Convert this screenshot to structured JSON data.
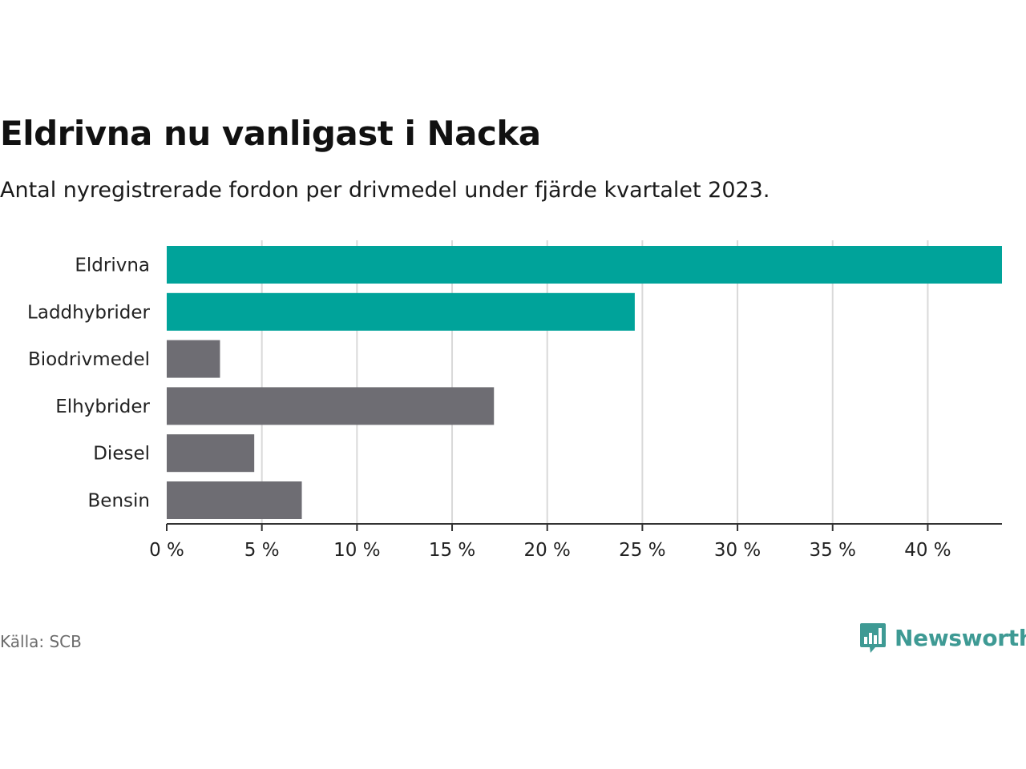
{
  "title": "Eldrivna nu vanligast i Nacka",
  "subtitle": "Antal nyregistrerade fordon per drivmedel under fjärde kvartalet 2023.",
  "source": "Källa: SCB",
  "brand": {
    "name": "Newsworthy",
    "icon": "bar-chart-speech-bubble-icon",
    "color": "#3e9a94"
  },
  "colors": {
    "highlight": "#00a39a",
    "default": "#6e6d73",
    "grid": "#d9d9d9",
    "axis": "#333333"
  },
  "chart_data": {
    "type": "bar",
    "orientation": "horizontal",
    "categories": [
      "Eldrivna",
      "Laddhybrider",
      "Biodrivmedel",
      "Elhybrider",
      "Diesel",
      "Bensin"
    ],
    "values": [
      43.9,
      24.6,
      2.8,
      17.2,
      4.6,
      7.1
    ],
    "highlighted": [
      true,
      true,
      false,
      false,
      false,
      false
    ],
    "xlim": [
      0,
      43.9
    ],
    "xticks": [
      0,
      5,
      10,
      15,
      20,
      25,
      30,
      35,
      40
    ],
    "tick_labels": [
      "0 %",
      "5 %",
      "10 %",
      "15 %",
      "20 %",
      "25 %",
      "30 %",
      "35 %",
      "40 %"
    ],
    "grid": true,
    "xlabel": "",
    "ylabel": ""
  }
}
